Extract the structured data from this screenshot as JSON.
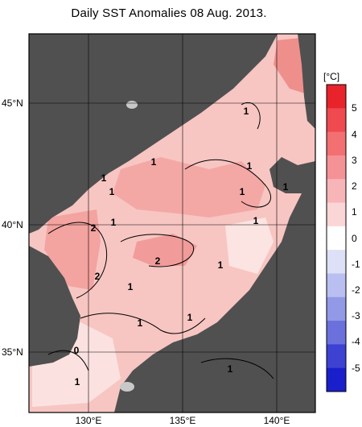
{
  "title": "Daily SST Anomalies 08 Aug. 2013.",
  "lat_labels": [
    "45°N",
    "40°N",
    "35°N"
  ],
  "lon_labels": [
    "130°E",
    "135°E",
    "140°E"
  ],
  "colorbar": {
    "unit": "[°C]",
    "ticks": [
      "5",
      "4",
      "3",
      "2",
      "1",
      "0",
      "-1",
      "-2",
      "-3",
      "-4",
      "-5"
    ],
    "colors": [
      "#e8232b",
      "#ee4a50",
      "#f26f72",
      "#f59296",
      "#f8b5b7",
      "#fbd6d6",
      "#ffffff",
      "#dde0f7",
      "#b9bff0",
      "#9299e6",
      "#6a70dc",
      "#3d42d3",
      "#1a1fcc"
    ]
  },
  "contour_labels": [
    "1",
    "1",
    "1",
    "1",
    "1",
    "1",
    "1",
    "1",
    "2",
    "1",
    "2",
    "1",
    "2",
    "1",
    "1",
    "1",
    "0",
    "1",
    "1"
  ],
  "colors": {
    "land": "#505050",
    "sea_bg": "#f7c6c2",
    "ice": "#c8c8c8"
  }
}
